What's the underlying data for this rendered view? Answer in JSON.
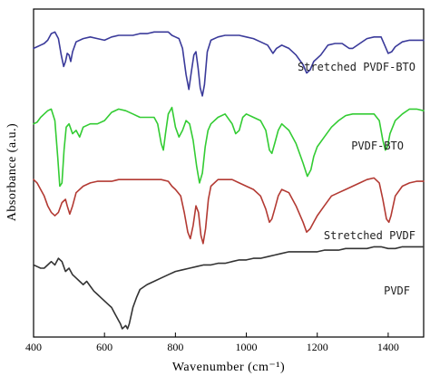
{
  "chart_data": {
    "type": "line",
    "xlabel": "Wavenumber (cm⁻¹)",
    "ylabel": "Absorbance (a.u.)",
    "xlim": [
      400,
      1500
    ],
    "xticks": [
      400,
      600,
      800,
      1000,
      1200,
      1400
    ],
    "ylim": [
      0,
      100
    ],
    "yticks_shown": false,
    "grid": false,
    "legend": "none",
    "series": [
      {
        "name": "Stretched PVDF-BTO",
        "color": "#3a3a9a",
        "points": [
          [
            400,
            88
          ],
          [
            410,
            88.5
          ],
          [
            420,
            89
          ],
          [
            430,
            89.5
          ],
          [
            440,
            90.5
          ],
          [
            450,
            92.5
          ],
          [
            460,
            93
          ],
          [
            470,
            91
          ],
          [
            478,
            86
          ],
          [
            485,
            82.5
          ],
          [
            490,
            84
          ],
          [
            495,
            86.5
          ],
          [
            500,
            86
          ],
          [
            505,
            84
          ],
          [
            510,
            87
          ],
          [
            520,
            90
          ],
          [
            540,
            91
          ],
          [
            560,
            91.5
          ],
          [
            580,
            91
          ],
          [
            600,
            90.5
          ],
          [
            620,
            91.5
          ],
          [
            640,
            92
          ],
          [
            660,
            92
          ],
          [
            680,
            92
          ],
          [
            700,
            92.5
          ],
          [
            720,
            92.5
          ],
          [
            740,
            93
          ],
          [
            760,
            93
          ],
          [
            780,
            93
          ],
          [
            790,
            92
          ],
          [
            800,
            91.5
          ],
          [
            810,
            91
          ],
          [
            820,
            88
          ],
          [
            830,
            80
          ],
          [
            838,
            75.5
          ],
          [
            845,
            81
          ],
          [
            852,
            86
          ],
          [
            858,
            87
          ],
          [
            864,
            82
          ],
          [
            870,
            76
          ],
          [
            876,
            73.5
          ],
          [
            882,
            77
          ],
          [
            890,
            87
          ],
          [
            900,
            90.5
          ],
          [
            920,
            91.5
          ],
          [
            940,
            92
          ],
          [
            960,
            92
          ],
          [
            980,
            92
          ],
          [
            1000,
            91.5
          ],
          [
            1020,
            91
          ],
          [
            1040,
            90
          ],
          [
            1060,
            89
          ],
          [
            1075,
            86.5
          ],
          [
            1085,
            88
          ],
          [
            1100,
            89
          ],
          [
            1110,
            88.5
          ],
          [
            1120,
            88
          ],
          [
            1140,
            86
          ],
          [
            1160,
            83
          ],
          [
            1170,
            80.5
          ],
          [
            1180,
            81.5
          ],
          [
            1190,
            84
          ],
          [
            1200,
            85
          ],
          [
            1210,
            86
          ],
          [
            1230,
            89
          ],
          [
            1250,
            89.5
          ],
          [
            1270,
            89.5
          ],
          [
            1290,
            88
          ],
          [
            1300,
            88
          ],
          [
            1320,
            89.5
          ],
          [
            1340,
            91
          ],
          [
            1360,
            91.5
          ],
          [
            1380,
            91.5
          ],
          [
            1390,
            89
          ],
          [
            1400,
            86.5
          ],
          [
            1410,
            87
          ],
          [
            1420,
            88.5
          ],
          [
            1440,
            90
          ],
          [
            1460,
            90.5
          ],
          [
            1480,
            90.5
          ],
          [
            1500,
            90.5
          ]
        ]
      },
      {
        "name": "PVDF-BTO",
        "color": "#33cc33",
        "points": [
          [
            400,
            65
          ],
          [
            410,
            65.5
          ],
          [
            420,
            67
          ],
          [
            430,
            68
          ],
          [
            440,
            69
          ],
          [
            450,
            69.5
          ],
          [
            460,
            66
          ],
          [
            468,
            55
          ],
          [
            474,
            46
          ],
          [
            480,
            47
          ],
          [
            486,
            57
          ],
          [
            492,
            64
          ],
          [
            500,
            65
          ],
          [
            510,
            62
          ],
          [
            520,
            63
          ],
          [
            530,
            61
          ],
          [
            540,
            64
          ],
          [
            560,
            65
          ],
          [
            580,
            65
          ],
          [
            600,
            66
          ],
          [
            620,
            68.5
          ],
          [
            640,
            69.5
          ],
          [
            660,
            69
          ],
          [
            680,
            68
          ],
          [
            700,
            67
          ],
          [
            720,
            67
          ],
          [
            740,
            67
          ],
          [
            750,
            65
          ],
          [
            760,
            59
          ],
          [
            766,
            57
          ],
          [
            772,
            62
          ],
          [
            780,
            68
          ],
          [
            790,
            70
          ],
          [
            800,
            64
          ],
          [
            810,
            61
          ],
          [
            820,
            63
          ],
          [
            830,
            66
          ],
          [
            840,
            65
          ],
          [
            850,
            60
          ],
          [
            860,
            52
          ],
          [
            868,
            47
          ],
          [
            876,
            50
          ],
          [
            884,
            58
          ],
          [
            892,
            63
          ],
          [
            900,
            65
          ],
          [
            920,
            67
          ],
          [
            940,
            68
          ],
          [
            960,
            65
          ],
          [
            970,
            62
          ],
          [
            980,
            63
          ],
          [
            990,
            67
          ],
          [
            1000,
            68
          ],
          [
            1020,
            67
          ],
          [
            1040,
            66
          ],
          [
            1055,
            63
          ],
          [
            1065,
            57
          ],
          [
            1072,
            56
          ],
          [
            1080,
            59
          ],
          [
            1090,
            63
          ],
          [
            1100,
            65
          ],
          [
            1110,
            64
          ],
          [
            1120,
            63
          ],
          [
            1140,
            59
          ],
          [
            1160,
            53
          ],
          [
            1172,
            49
          ],
          [
            1182,
            51
          ],
          [
            1190,
            55
          ],
          [
            1200,
            58
          ],
          [
            1220,
            61
          ],
          [
            1240,
            64
          ],
          [
            1260,
            66
          ],
          [
            1280,
            67.5
          ],
          [
            1300,
            68
          ],
          [
            1320,
            68
          ],
          [
            1340,
            68
          ],
          [
            1360,
            68
          ],
          [
            1375,
            66
          ],
          [
            1385,
            60
          ],
          [
            1392,
            57
          ],
          [
            1398,
            58
          ],
          [
            1405,
            62
          ],
          [
            1420,
            66
          ],
          [
            1440,
            68
          ],
          [
            1460,
            69.5
          ],
          [
            1480,
            69.5
          ],
          [
            1500,
            69
          ]
        ]
      },
      {
        "name": "Stretched PVDF",
        "color": "#b33a33",
        "points": [
          [
            400,
            48
          ],
          [
            410,
            47
          ],
          [
            420,
            45
          ],
          [
            430,
            43
          ],
          [
            440,
            40
          ],
          [
            450,
            38
          ],
          [
            460,
            37
          ],
          [
            470,
            38
          ],
          [
            480,
            41
          ],
          [
            490,
            42
          ],
          [
            495,
            40
          ],
          [
            502,
            37.5
          ],
          [
            510,
            40
          ],
          [
            520,
            44
          ],
          [
            540,
            46
          ],
          [
            560,
            47
          ],
          [
            580,
            47.5
          ],
          [
            600,
            47.5
          ],
          [
            620,
            47.5
          ],
          [
            640,
            48
          ],
          [
            660,
            48
          ],
          [
            680,
            48
          ],
          [
            700,
            48
          ],
          [
            720,
            48
          ],
          [
            740,
            48
          ],
          [
            760,
            48
          ],
          [
            780,
            47.5
          ],
          [
            790,
            46
          ],
          [
            800,
            45
          ],
          [
            815,
            43
          ],
          [
            825,
            38
          ],
          [
            835,
            32
          ],
          [
            842,
            30
          ],
          [
            850,
            34
          ],
          [
            858,
            40
          ],
          [
            865,
            38
          ],
          [
            872,
            31
          ],
          [
            878,
            28.5
          ],
          [
            885,
            33
          ],
          [
            893,
            42
          ],
          [
            900,
            46
          ],
          [
            920,
            48
          ],
          [
            940,
            48
          ],
          [
            960,
            48
          ],
          [
            980,
            47
          ],
          [
            1000,
            46
          ],
          [
            1020,
            45
          ],
          [
            1040,
            43
          ],
          [
            1055,
            39
          ],
          [
            1065,
            35
          ],
          [
            1072,
            36
          ],
          [
            1080,
            39
          ],
          [
            1090,
            43
          ],
          [
            1100,
            45
          ],
          [
            1120,
            44
          ],
          [
            1140,
            40
          ],
          [
            1160,
            35
          ],
          [
            1170,
            32
          ],
          [
            1180,
            33
          ],
          [
            1190,
            35
          ],
          [
            1200,
            37
          ],
          [
            1220,
            40
          ],
          [
            1240,
            43
          ],
          [
            1260,
            44
          ],
          [
            1280,
            45
          ],
          [
            1300,
            46
          ],
          [
            1320,
            47
          ],
          [
            1340,
            48
          ],
          [
            1360,
            48.5
          ],
          [
            1375,
            47
          ],
          [
            1385,
            42
          ],
          [
            1395,
            36
          ],
          [
            1402,
            35
          ],
          [
            1408,
            37
          ],
          [
            1420,
            43
          ],
          [
            1440,
            46
          ],
          [
            1460,
            47
          ],
          [
            1480,
            47.5
          ],
          [
            1500,
            47.5
          ]
        ]
      },
      {
        "name": "PVDF",
        "color": "#333333",
        "points": [
          [
            400,
            22
          ],
          [
            410,
            21.5
          ],
          [
            420,
            21
          ],
          [
            430,
            21
          ],
          [
            440,
            22
          ],
          [
            450,
            23
          ],
          [
            460,
            22
          ],
          [
            470,
            24
          ],
          [
            480,
            23
          ],
          [
            490,
            20
          ],
          [
            500,
            21
          ],
          [
            510,
            19
          ],
          [
            520,
            18
          ],
          [
            530,
            17
          ],
          [
            540,
            16
          ],
          [
            550,
            17
          ],
          [
            560,
            15.5
          ],
          [
            570,
            14
          ],
          [
            580,
            13
          ],
          [
            590,
            12
          ],
          [
            600,
            11
          ],
          [
            610,
            10
          ],
          [
            620,
            9
          ],
          [
            630,
            7
          ],
          [
            640,
            5
          ],
          [
            645,
            4
          ],
          [
            650,
            2.5
          ],
          [
            655,
            3
          ],
          [
            660,
            3.5
          ],
          [
            665,
            2.5
          ],
          [
            670,
            4
          ],
          [
            680,
            9
          ],
          [
            690,
            12
          ],
          [
            700,
            14.5
          ],
          [
            720,
            16
          ],
          [
            740,
            17
          ],
          [
            760,
            18
          ],
          [
            780,
            19
          ],
          [
            800,
            20
          ],
          [
            820,
            20.5
          ],
          [
            840,
            21
          ],
          [
            860,
            21.5
          ],
          [
            880,
            22
          ],
          [
            900,
            22
          ],
          [
            920,
            22.5
          ],
          [
            940,
            22.5
          ],
          [
            960,
            23
          ],
          [
            980,
            23.5
          ],
          [
            1000,
            23.5
          ],
          [
            1020,
            24
          ],
          [
            1040,
            24
          ],
          [
            1060,
            24.5
          ],
          [
            1080,
            25
          ],
          [
            1100,
            25.5
          ],
          [
            1120,
            26
          ],
          [
            1140,
            26
          ],
          [
            1160,
            26
          ],
          [
            1180,
            26
          ],
          [
            1200,
            26
          ],
          [
            1220,
            26.5
          ],
          [
            1240,
            26.5
          ],
          [
            1260,
            26.5
          ],
          [
            1280,
            27
          ],
          [
            1300,
            27
          ],
          [
            1320,
            27
          ],
          [
            1340,
            27
          ],
          [
            1360,
            27.5
          ],
          [
            1380,
            27.5
          ],
          [
            1400,
            27
          ],
          [
            1420,
            27
          ],
          [
            1440,
            27.5
          ],
          [
            1460,
            27.5
          ],
          [
            1480,
            27.5
          ],
          [
            1500,
            27.5
          ]
        ]
      }
    ]
  }
}
